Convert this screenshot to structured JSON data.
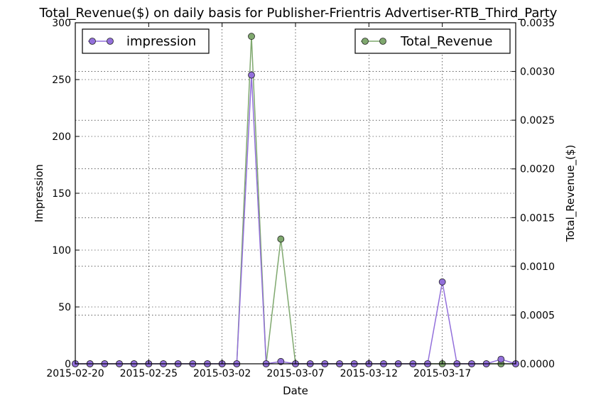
{
  "chart_data": {
    "type": "line",
    "title": "Total_Revenue($) on daily basis for Publisher-Frientris Advertiser-RTB_Third_Party",
    "xlabel": "Date",
    "ylabel": "Impression",
    "ylabel_right": "Total_Revenue_($)",
    "x_ticks": [
      "2015-02-20",
      "2015-02-25",
      "2015-03-02",
      "2015-03-07",
      "2015-03-12",
      "2015-03-17"
    ],
    "y_ticks": [
      "0",
      "50",
      "100",
      "150",
      "200",
      "250",
      "300"
    ],
    "y2_ticks": [
      "0.0000",
      "0.0005",
      "0.0010",
      "0.0015",
      "0.0020",
      "0.0025",
      "0.0030",
      "0.0035"
    ],
    "ylim": [
      0,
      300
    ],
    "y2lim": [
      0,
      0.0035
    ],
    "grid": true,
    "x": [
      "2015-02-20",
      "2015-02-21",
      "2015-02-22",
      "2015-02-23",
      "2015-02-24",
      "2015-02-25",
      "2015-02-26",
      "2015-02-27",
      "2015-02-28",
      "2015-03-01",
      "2015-03-02",
      "2015-03-03",
      "2015-03-04",
      "2015-03-05",
      "2015-03-06",
      "2015-03-07",
      "2015-03-08",
      "2015-03-09",
      "2015-03-10",
      "2015-03-11",
      "2015-03-12",
      "2015-03-13",
      "2015-03-14",
      "2015-03-15",
      "2015-03-16",
      "2015-03-17",
      "2015-03-18",
      "2015-03-19",
      "2015-03-20",
      "2015-03-21",
      "2015-03-22"
    ],
    "series": [
      {
        "name": "impression",
        "axis": "left",
        "color": "#9370DB",
        "values": [
          0,
          0,
          0,
          0,
          0,
          0,
          0,
          0,
          0,
          0,
          0,
          0,
          254,
          0,
          2,
          0,
          0,
          0,
          0,
          0,
          0,
          0,
          0,
          0,
          0,
          72,
          0,
          0,
          0,
          4,
          0
        ]
      },
      {
        "name": "Total_Revenue",
        "axis": "right",
        "color": "#7FA86E",
        "values": [
          0,
          0,
          0,
          0,
          0,
          0,
          0,
          0,
          0,
          0,
          0,
          0,
          0.00336,
          0,
          0.00128,
          0,
          0,
          0,
          0,
          0,
          0,
          0,
          0,
          0,
          0,
          0,
          0,
          0,
          0,
          0,
          0
        ]
      }
    ],
    "legends": [
      {
        "label": "impression",
        "placement": "top-left"
      },
      {
        "label": "Total_Revenue",
        "placement": "top-right"
      }
    ]
  }
}
